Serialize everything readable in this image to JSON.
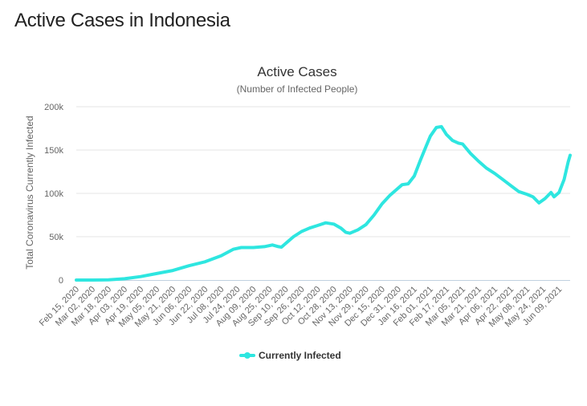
{
  "page": {
    "heading": "Active Cases in Indonesia"
  },
  "chart_data": {
    "type": "line",
    "title": "Active Cases",
    "subtitle": "(Number of Infected People)",
    "xlabel": "",
    "ylabel": "Total Coronavirus Currently Infected",
    "ylim": [
      0,
      200000
    ],
    "yticks": [
      0,
      50000,
      100000,
      150000,
      200000
    ],
    "ytick_labels": [
      "0",
      "50k",
      "100k",
      "150k",
      "200k"
    ],
    "xlim": [
      "2020-02-15",
      "2021-06-20"
    ],
    "xticks": [
      "2020-02-15",
      "2020-03-02",
      "2020-03-18",
      "2020-04-03",
      "2020-04-19",
      "2020-05-05",
      "2020-05-21",
      "2020-06-06",
      "2020-06-22",
      "2020-07-08",
      "2020-07-24",
      "2020-08-09",
      "2020-08-25",
      "2020-09-10",
      "2020-09-26",
      "2020-10-12",
      "2020-10-28",
      "2020-11-13",
      "2020-11-29",
      "2020-12-15",
      "2020-12-31",
      "2021-01-16",
      "2021-02-01",
      "2021-02-17",
      "2021-03-05",
      "2021-03-21",
      "2021-04-06",
      "2021-04-22",
      "2021-05-08",
      "2021-05-24",
      "2021-06-09"
    ],
    "xtick_labels": [
      "Feb 15, 2020",
      "Mar 02, 2020",
      "Mar 18, 2020",
      "Apr 03, 2020",
      "Apr 19, 2020",
      "May 05, 2020",
      "May 21, 2020",
      "Jun 06, 2020",
      "Jun 22, 2020",
      "Jul 08, 2020",
      "Jul 24, 2020",
      "Aug 09, 2020",
      "Aug 25, 2020",
      "Sep 10, 2020",
      "Sep 26, 2020",
      "Oct 12, 2020",
      "Oct 28, 2020",
      "Nov 13, 2020",
      "Nov 29, 2020",
      "Dec 15, 2020",
      "Dec 31, 2020",
      "Jan 16, 2021",
      "Feb 01, 2021",
      "Feb 17, 2021",
      "Mar 05, 2021",
      "Mar 21, 2021",
      "Apr 06, 2021",
      "Apr 22, 2021",
      "May 08, 2021",
      "May 24, 2021",
      "Jun 09, 2021"
    ],
    "grid": true,
    "legend": "bottom-center",
    "series": [
      {
        "name": "Currently Infected",
        "color": "#2ee6e0",
        "points": [
          [
            "2020-02-15",
            0
          ],
          [
            "2020-03-02",
            0
          ],
          [
            "2020-03-18",
            200
          ],
          [
            "2020-04-03",
            1500
          ],
          [
            "2020-04-19",
            4000
          ],
          [
            "2020-05-05",
            7500
          ],
          [
            "2020-05-21",
            11000
          ],
          [
            "2020-06-06",
            16500
          ],
          [
            "2020-06-22",
            21000
          ],
          [
            "2020-07-08",
            28000
          ],
          [
            "2020-07-20",
            35500
          ],
          [
            "2020-07-28",
            37500
          ],
          [
            "2020-08-09",
            37500
          ],
          [
            "2020-08-20",
            38500
          ],
          [
            "2020-08-28",
            40500
          ],
          [
            "2020-09-03",
            38500
          ],
          [
            "2020-09-06",
            38000
          ],
          [
            "2020-09-10",
            42000
          ],
          [
            "2020-09-18",
            50000
          ],
          [
            "2020-09-26",
            56000
          ],
          [
            "2020-10-04",
            60000
          ],
          [
            "2020-10-12",
            63000
          ],
          [
            "2020-10-20",
            66000
          ],
          [
            "2020-10-28",
            64500
          ],
          [
            "2020-11-04",
            60000
          ],
          [
            "2020-11-09",
            55000
          ],
          [
            "2020-11-13",
            54000
          ],
          [
            "2020-11-21",
            58000
          ],
          [
            "2020-11-29",
            64000
          ],
          [
            "2020-12-07",
            75000
          ],
          [
            "2020-12-15",
            88000
          ],
          [
            "2020-12-23",
            98000
          ],
          [
            "2020-12-31",
            106000
          ],
          [
            "2021-01-04",
            110000
          ],
          [
            "2021-01-10",
            111000
          ],
          [
            "2021-01-16",
            120000
          ],
          [
            "2021-01-22",
            138000
          ],
          [
            "2021-01-28",
            155000
          ],
          [
            "2021-02-01",
            166000
          ],
          [
            "2021-02-07",
            176000
          ],
          [
            "2021-02-12",
            177000
          ],
          [
            "2021-02-17",
            168000
          ],
          [
            "2021-02-23",
            161000
          ],
          [
            "2021-03-01",
            158000
          ],
          [
            "2021-03-05",
            157000
          ],
          [
            "2021-03-13",
            146000
          ],
          [
            "2021-03-21",
            137000
          ],
          [
            "2021-03-29",
            129000
          ],
          [
            "2021-04-06",
            123000
          ],
          [
            "2021-04-14",
            116000
          ],
          [
            "2021-04-22",
            109000
          ],
          [
            "2021-04-30",
            102000
          ],
          [
            "2021-05-08",
            99000
          ],
          [
            "2021-05-14",
            96000
          ],
          [
            "2021-05-20",
            89000
          ],
          [
            "2021-05-26",
            94000
          ],
          [
            "2021-06-01",
            101000
          ],
          [
            "2021-06-04",
            96000
          ],
          [
            "2021-06-09",
            101000
          ],
          [
            "2021-06-14",
            116000
          ],
          [
            "2021-06-18",
            136000
          ],
          [
            "2021-06-20",
            144000
          ]
        ]
      }
    ]
  }
}
